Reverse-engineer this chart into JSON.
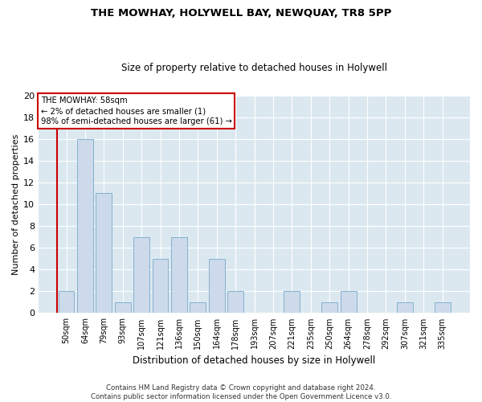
{
  "title": "THE MOWHAY, HOLYWELL BAY, NEWQUAY, TR8 5PP",
  "subtitle": "Size of property relative to detached houses in Holywell",
  "xlabel": "Distribution of detached houses by size in Holywell",
  "ylabel": "Number of detached properties",
  "categories": [
    "50sqm",
    "64sqm",
    "79sqm",
    "93sqm",
    "107sqm",
    "121sqm",
    "136sqm",
    "150sqm",
    "164sqm",
    "178sqm",
    "193sqm",
    "207sqm",
    "221sqm",
    "235sqm",
    "250sqm",
    "264sqm",
    "278sqm",
    "292sqm",
    "307sqm",
    "321sqm",
    "335sqm"
  ],
  "values": [
    2,
    16,
    11,
    1,
    7,
    5,
    7,
    1,
    5,
    2,
    0,
    0,
    2,
    0,
    1,
    2,
    0,
    0,
    1,
    0,
    1
  ],
  "bar_color": "#ccdaeb",
  "bar_edge_color": "#7aaac8",
  "highlight_color": "#cc0000",
  "annotation_title": "THE MOWHAY: 58sqm",
  "annotation_line1": "← 2% of detached houses are smaller (1)",
  "annotation_line2": "98% of semi-detached houses are larger (61) →",
  "annotation_box_color": "#cc0000",
  "ylim": [
    0,
    20
  ],
  "yticks": [
    0,
    2,
    4,
    6,
    8,
    10,
    12,
    14,
    16,
    18,
    20
  ],
  "footer_line1": "Contains HM Land Registry data © Crown copyright and database right 2024.",
  "footer_line2": "Contains public sector information licensed under the Open Government Licence v3.0.",
  "bg_color": "#ffffff",
  "axes_bg_color": "#dce8f0"
}
